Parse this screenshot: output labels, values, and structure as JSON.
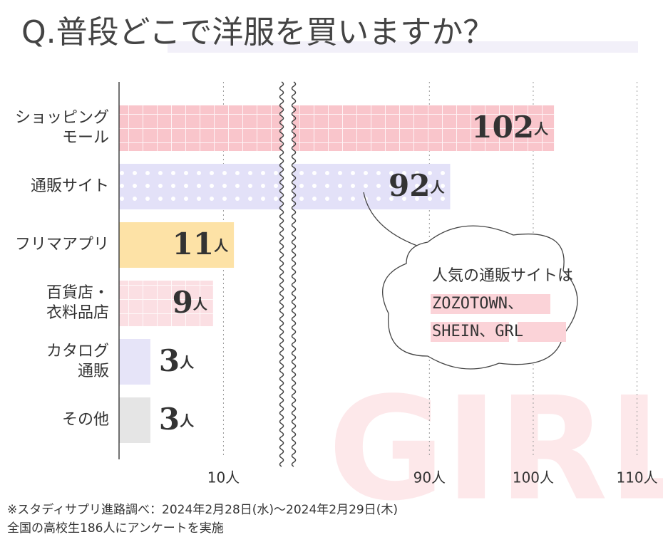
{
  "chart_data": {
    "type": "bar",
    "orientation": "horizontal",
    "title": "Q.普段どこで洋服を買いますか？",
    "categories": [
      [
        "ショッピング",
        "モール"
      ],
      [
        "通販サイト"
      ],
      [
        "フリマアプリ"
      ],
      [
        "百貨店・",
        "衣料品店"
      ],
      [
        "カタログ",
        "通販"
      ],
      [
        "その他"
      ]
    ],
    "values": [
      102,
      92,
      11,
      9,
      3,
      3
    ],
    "value_labels": [
      "102人",
      "92人",
      "11人",
      "9人",
      "3人",
      "3人"
    ],
    "colors": [
      "#f9c5cb",
      "#e3e1f8",
      "#fde2a6",
      "#fbdfe3",
      "#e6e4f8",
      "#e5e5e5"
    ],
    "xlim": [
      0,
      112.5
    ],
    "axis_break": [
      15.5,
      77
    ],
    "xticks": [
      {
        "value": 10,
        "label": "10人"
      },
      {
        "value": 90,
        "label": "90人"
      },
      {
        "value": 100,
        "label": "100人"
      },
      {
        "value": 110,
        "label": "110人"
      }
    ],
    "grid": true,
    "annotation": [
      "人気の通販サイトは",
      "ZOZOTOWN、",
      "SHEIN、GRL"
    ],
    "watermark": "GIRL",
    "footnote": [
      "※スタディサプリ進路調べ：2024年2月28日(水)〜2024年2月29日(木)",
      "全国の高校生186人にアンケートを実施"
    ]
  }
}
